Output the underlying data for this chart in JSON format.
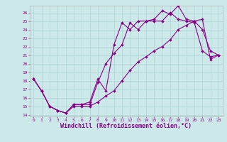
{
  "background_color": "#cce8e8",
  "grid_color": "#b0d8d8",
  "line_color": "#880088",
  "markersize": 2.0,
  "linewidth": 0.8,
  "xlabel": "Windchill (Refroidissement éolien,°C)",
  "xlabel_fontsize": 6.0,
  "xlim_min": -0.5,
  "xlim_max": 23.5,
  "ylim_min": 13.8,
  "ylim_max": 26.8,
  "yticks": [
    14,
    15,
    16,
    17,
    18,
    19,
    20,
    21,
    22,
    23,
    24,
    25,
    26
  ],
  "xticks": [
    0,
    1,
    2,
    3,
    4,
    5,
    6,
    7,
    8,
    9,
    10,
    11,
    12,
    13,
    14,
    15,
    16,
    17,
    18,
    19,
    20,
    21,
    22,
    23
  ],
  "series1_x": [
    0,
    1,
    2,
    3,
    4,
    5,
    6,
    7,
    8,
    9,
    10,
    11,
    12,
    13,
    14,
    15,
    16,
    17,
    18,
    19,
    20,
    21,
    22,
    23
  ],
  "series1_y": [
    18.2,
    16.8,
    15.0,
    14.5,
    14.2,
    15.2,
    15.2,
    15.2,
    17.8,
    20.0,
    21.2,
    22.2,
    24.8,
    24.0,
    25.0,
    25.0,
    25.0,
    26.0,
    25.2,
    25.0,
    24.8,
    21.5,
    20.8,
    21.0
  ],
  "series2_x": [
    0,
    1,
    2,
    3,
    4,
    5,
    6,
    7,
    8,
    9,
    10,
    11,
    12,
    13,
    14,
    15,
    16,
    17,
    18,
    19,
    20,
    21,
    22,
    23
  ],
  "series2_y": [
    18.2,
    16.8,
    15.0,
    14.5,
    14.2,
    15.2,
    15.2,
    15.5,
    18.2,
    16.8,
    22.2,
    24.8,
    24.0,
    25.0,
    25.0,
    25.2,
    26.2,
    25.8,
    26.8,
    25.2,
    25.0,
    24.0,
    21.5,
    21.0
  ],
  "series3_x": [
    0,
    1,
    2,
    3,
    4,
    5,
    6,
    7,
    8,
    9,
    10,
    11,
    12,
    13,
    14,
    15,
    16,
    17,
    18,
    19,
    20,
    21,
    22,
    23
  ],
  "series3_y": [
    18.2,
    16.8,
    15.0,
    14.5,
    14.2,
    15.0,
    15.0,
    15.0,
    15.5,
    16.2,
    16.8,
    18.0,
    19.2,
    20.2,
    20.8,
    21.5,
    22.0,
    22.8,
    24.0,
    24.5,
    25.0,
    25.2,
    20.5,
    21.0
  ]
}
